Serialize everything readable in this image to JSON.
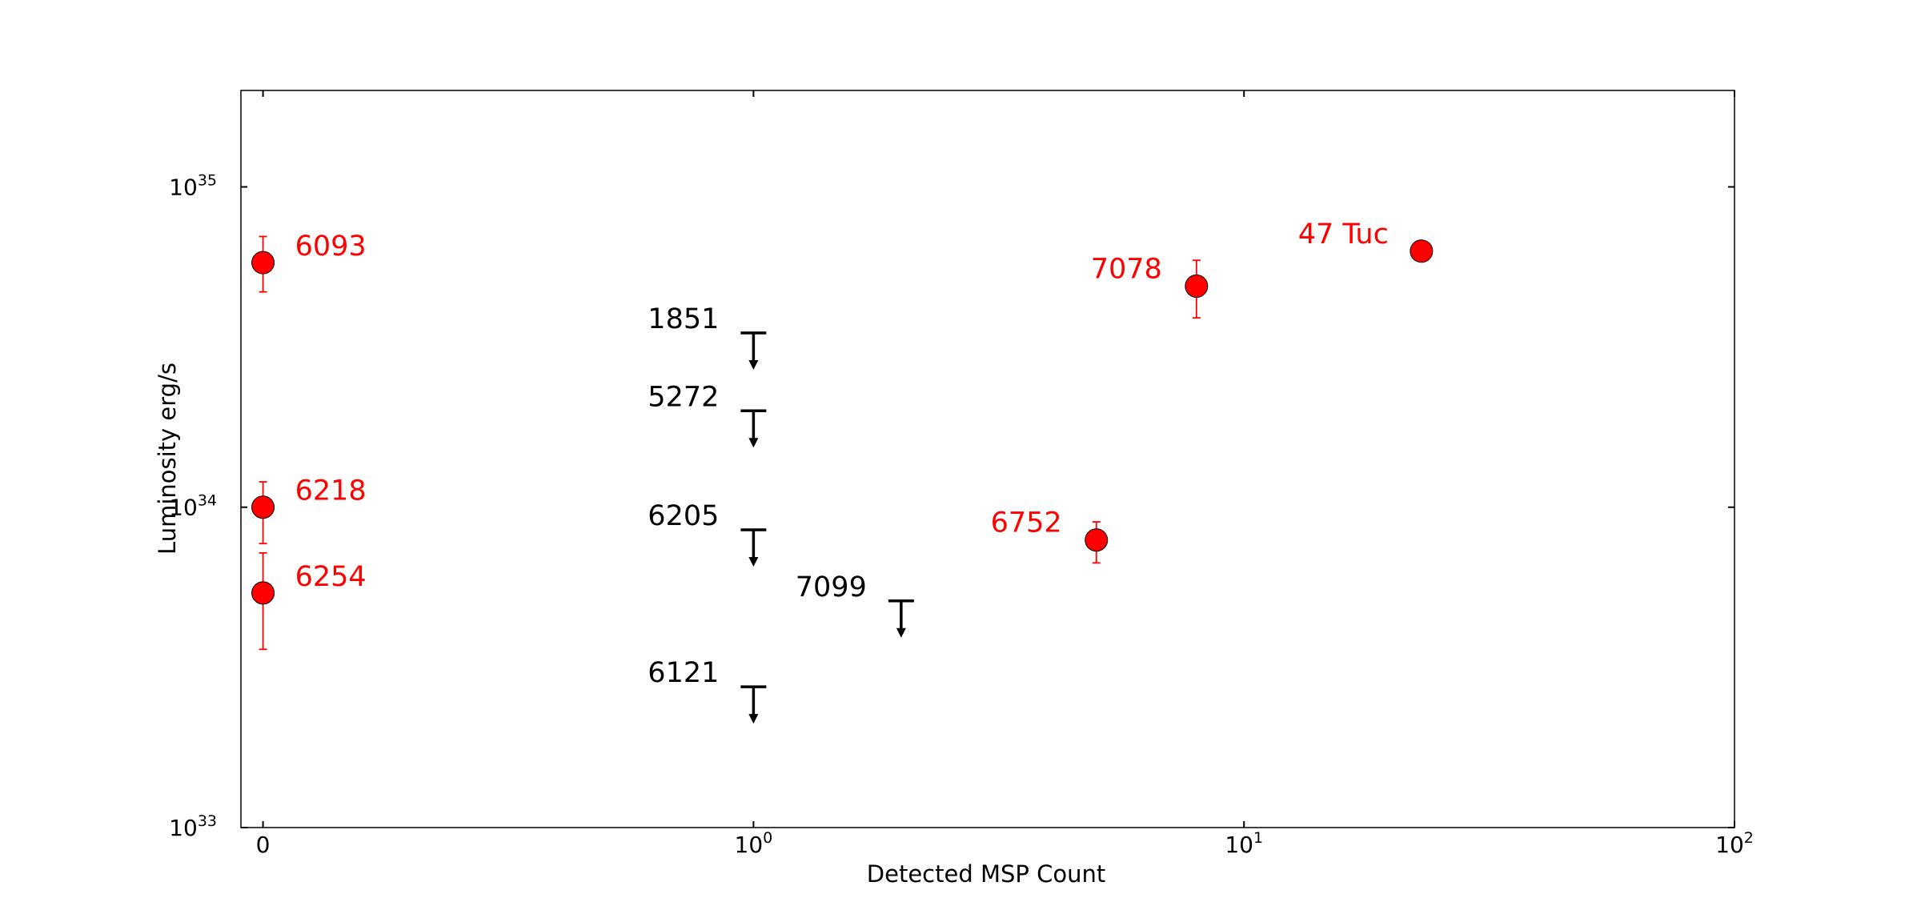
{
  "chart_data": {
    "type": "scatter",
    "xlabel": "Detected MSP Count",
    "ylabel": "Luminosity erg/s",
    "xscale": "symlog",
    "yscale": "log",
    "xlim": [
      -0.045,
      100
    ],
    "ylim": [
      1e+33,
      2e+35
    ],
    "grid": false,
    "x_ticks": [
      {
        "value": 0,
        "base": "0",
        "exp": ""
      },
      {
        "value": 1,
        "base": "10",
        "exp": "0"
      },
      {
        "value": 10,
        "base": "10",
        "exp": "1"
      },
      {
        "value": 100,
        "base": "10",
        "exp": "2"
      }
    ],
    "y_ticks": [
      {
        "value": 1e+33,
        "base": "10",
        "exp": "33"
      },
      {
        "value": 1e+34,
        "base": "10",
        "exp": "34"
      },
      {
        "value": 1e+35,
        "base": "10",
        "exp": "35"
      }
    ],
    "detections": {
      "color": "#ff0000",
      "points": [
        {
          "label": "6093",
          "x": 0,
          "y": 5.8e+34,
          "yerr_low": 4.7e+34,
          "yerr_high": 7e+34
        },
        {
          "label": "6218",
          "x": 0,
          "y": 1e+34,
          "yerr_low": 7.7e+33,
          "yerr_high": 1.2e+34
        },
        {
          "label": "6254",
          "x": 0,
          "y": 5.4e+33,
          "yerr_low": 3.6e+33,
          "yerr_high": 7.2e+33
        },
        {
          "label": "7078",
          "x": 8,
          "y": 4.9e+34,
          "yerr_low": 3.9e+34,
          "yerr_high": 5.9e+34
        },
        {
          "label": "6752",
          "x": 5,
          "y": 7.9e+33,
          "yerr_low": 6.7e+33,
          "yerr_high": 9e+33
        },
        {
          "label": "47 Tuc",
          "x": 23,
          "y": 6.3e+34
        }
      ]
    },
    "upper_limits": {
      "color": "#000000",
      "points": [
        {
          "label": "1851",
          "x": 1,
          "y": 3.5e+34
        },
        {
          "label": "5272",
          "x": 1,
          "y": 2e+34
        },
        {
          "label": "6205",
          "x": 1,
          "y": 8.5e+33
        },
        {
          "label": "7099",
          "x": 2,
          "y": 5.1e+33
        },
        {
          "label": "6121",
          "x": 1,
          "y": 2.75e+33
        }
      ]
    }
  }
}
